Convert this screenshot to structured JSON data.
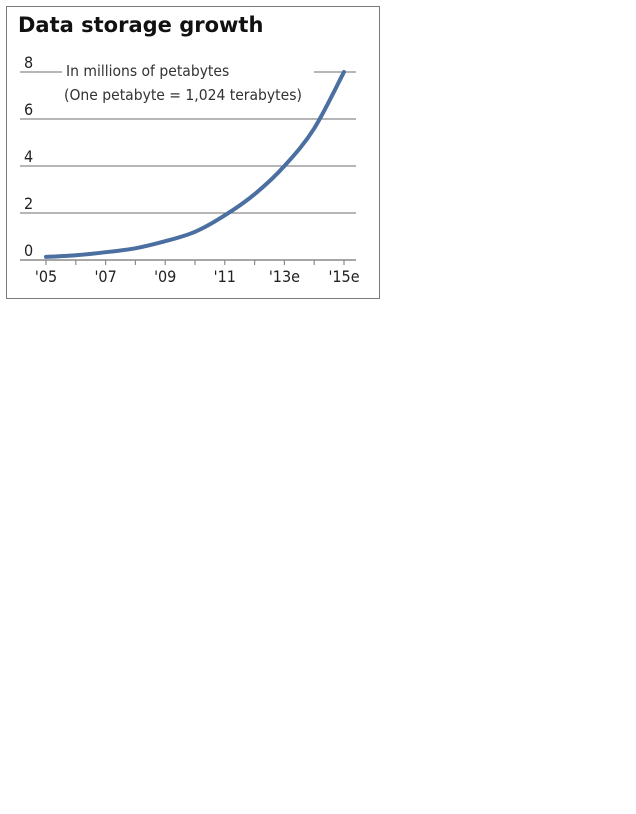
{
  "chart_data": {
    "type": "line",
    "title": "Data storage growth",
    "subtitle": "In millions of petabytes",
    "note": "(One petabyte = 1,024 terabytes)",
    "x": [
      2005,
      2006,
      2007,
      2008,
      2009,
      2010,
      2011,
      2012,
      2013,
      2014,
      2015
    ],
    "series": [
      {
        "values": [
          0.13,
          0.2,
          0.33,
          0.5,
          0.8,
          1.2,
          1.9,
          2.8,
          4.0,
          5.6,
          8.0
        ]
      }
    ],
    "x_ticks": [
      {
        "value": 2005,
        "label": "'05"
      },
      {
        "value": 2007,
        "label": "'07"
      },
      {
        "value": 2009,
        "label": "'09"
      },
      {
        "value": 2011,
        "label": "'11"
      },
      {
        "value": 2013,
        "label": "'13e"
      },
      {
        "value": 2015,
        "label": "'15e"
      }
    ],
    "y_ticks": [
      0,
      2,
      4,
      6,
      8
    ],
    "ylim": [
      0,
      8
    ],
    "xlim": [
      2005,
      2015
    ],
    "grid": true,
    "line_color": "#4a6fa0",
    "grid_color": "#8a8a8a"
  }
}
